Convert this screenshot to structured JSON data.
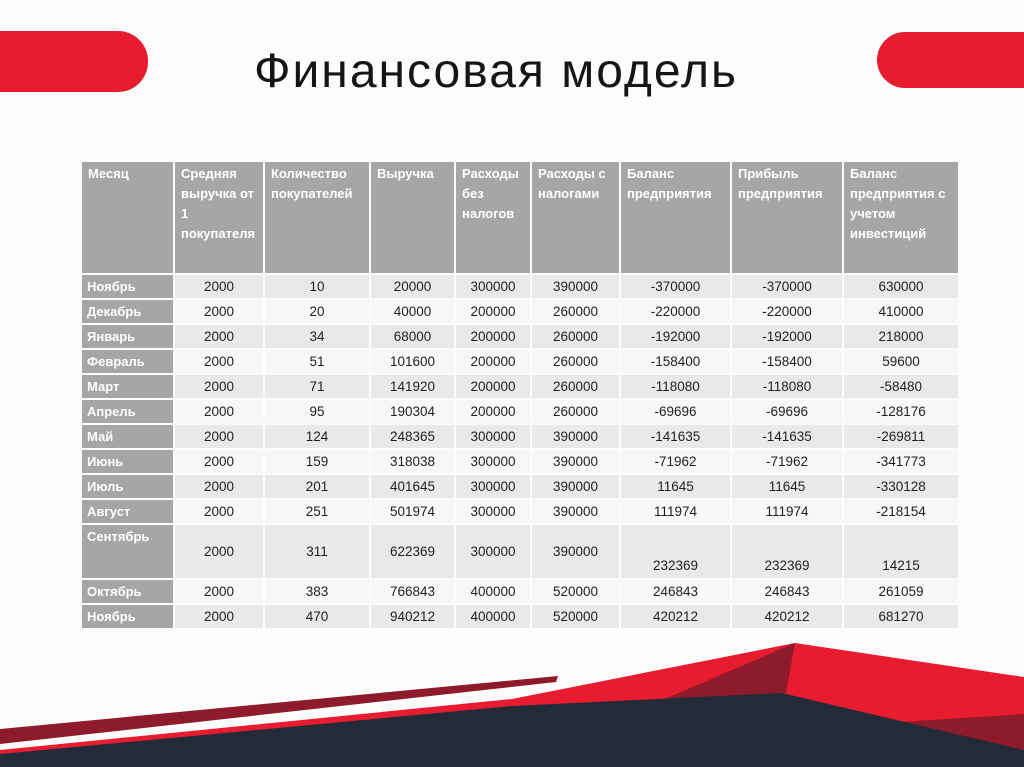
{
  "slide": {
    "title": "Финансовая модель"
  },
  "table": {
    "headers": [
      "Месяц",
      "Средняя выручка от 1 покупателя",
      "Количество покупателей",
      "Выручка",
      "Расходы без налогов",
      "Расходы с налогами",
      "Баланс предприятия",
      "Прибыль предприятия",
      "Баланс предприятия с учетом инвестиций"
    ],
    "rows": [
      {
        "month": "Ноябрь",
        "tall": false,
        "values": [
          "2000",
          "10",
          "20000",
          "300000",
          "390000",
          "-370000",
          "-370000",
          "630000"
        ]
      },
      {
        "month": "Декабрь",
        "tall": false,
        "values": [
          "2000",
          "20",
          "40000",
          "200000",
          "260000",
          "-220000",
          "-220000",
          "410000"
        ]
      },
      {
        "month": "Январь",
        "tall": false,
        "values": [
          "2000",
          "34",
          "68000",
          "200000",
          "260000",
          "-192000",
          "-192000",
          "218000"
        ]
      },
      {
        "month": "Февраль",
        "tall": false,
        "values": [
          "2000",
          "51",
          "101600",
          "200000",
          "260000",
          "-158400",
          "-158400",
          "59600"
        ]
      },
      {
        "month": "Март",
        "tall": false,
        "values": [
          "2000",
          "71",
          "141920",
          "200000",
          "260000",
          "-118080",
          "-118080",
          "-58480"
        ]
      },
      {
        "month": "Апрель",
        "tall": false,
        "values": [
          "2000",
          "95",
          "190304",
          "200000",
          "260000",
          "-69696",
          "-69696",
          "-128176"
        ]
      },
      {
        "month": "Май",
        "tall": false,
        "values": [
          "2000",
          "124",
          "248365",
          "300000",
          "390000",
          "-141635",
          "-141635",
          "-269811"
        ]
      },
      {
        "month": "Июнь",
        "tall": false,
        "values": [
          "2000",
          "159",
          "318038",
          "300000",
          "390000",
          "-71962",
          "-71962",
          "-341773"
        ]
      },
      {
        "month": "Июль",
        "tall": false,
        "values": [
          "2000",
          "201",
          "401645",
          "300000",
          "390000",
          "11645",
          "11645",
          "-330128"
        ]
      },
      {
        "month": "Август",
        "tall": false,
        "values": [
          "2000",
          "251",
          "501974",
          "300000",
          "390000",
          "111974",
          "111974",
          "-218154"
        ]
      },
      {
        "month": "Сентябрь",
        "tall": true,
        "values": [
          "2000",
          "311",
          "622369",
          "300000",
          "390000",
          "232369",
          "232369",
          "14215"
        ]
      },
      {
        "month": "Октябрь",
        "tall": false,
        "values": [
          "2000",
          "383",
          "766843",
          "400000",
          "520000",
          "246843",
          "246843",
          "261059"
        ]
      },
      {
        "month": "Ноябрь",
        "tall": false,
        "values": [
          "2000",
          "470",
          "940212",
          "400000",
          "520000",
          "420212",
          "420212",
          "681270"
        ]
      }
    ]
  },
  "colors": {
    "accent_red": "#E81C30",
    "dark_red": "#8E1B2B",
    "navy": "#232B39",
    "table_header_bg": "#A6A6A6",
    "row_dark": "#E9E9E9",
    "row_light": "#F7F7F7",
    "header_text": "#FFFFFF",
    "body_text": "#1F1F1F"
  }
}
